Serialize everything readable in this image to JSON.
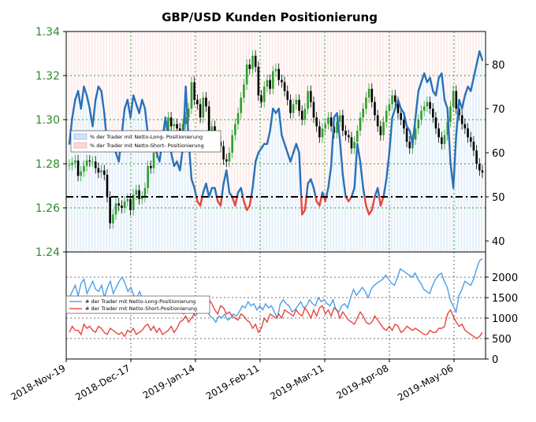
{
  "chart_data": {
    "type": "line",
    "title": "GBP/USD Kunden Positionierung",
    "x_ticks": [
      "2018-Nov-19",
      "2018-Dec-17",
      "2019-Jan-14",
      "2019-Feb-11",
      "2019-Mar-11",
      "2019-Apr-08",
      "2019-May-06"
    ],
    "top_panel": {
      "left_axis": {
        "ticks": [
          "1.24",
          "1.26",
          "1.28",
          "1.30",
          "1.32",
          "1.34"
        ],
        "ylim": [
          1.24,
          1.34
        ]
      },
      "right_axis": {
        "ticks": [
          "40",
          "50",
          "60",
          "70",
          "80"
        ],
        "ylim": [
          37.5,
          87.5
        ]
      },
      "threshold": 50,
      "legend": [
        "% der Trader mit Netto-Long- Positionierung",
        "% der Trader mit Netto-Short- Positionierung"
      ],
      "pct_net_long": [
        62,
        68,
        72,
        74,
        70,
        75,
        73,
        70,
        66,
        72,
        75,
        74,
        69,
        62,
        64,
        62,
        60,
        58,
        64,
        70,
        72,
        68,
        73,
        71,
        69,
        72,
        70,
        64,
        62,
        63,
        60,
        58,
        63,
        68,
        64,
        60,
        57,
        58,
        56,
        61,
        75,
        63,
        54,
        52,
        49,
        48,
        51,
        53,
        50,
        52,
        52,
        49,
        48,
        53,
        56,
        51,
        50,
        48,
        51,
        52,
        49,
        47,
        48,
        52,
        58,
        60,
        61,
        62,
        62,
        65,
        70,
        69,
        70,
        64,
        62,
        60,
        58,
        60,
        62,
        60,
        46,
        47,
        53,
        54,
        52,
        49,
        48,
        51,
        49,
        52,
        57,
        68,
        69,
        63,
        55,
        50,
        49,
        50,
        52,
        62,
        58,
        52,
        48,
        46,
        47,
        50,
        52,
        48,
        50,
        54,
        60,
        68,
        70,
        72,
        70,
        69,
        66,
        65,
        62,
        68,
        74,
        76,
        78,
        76,
        77,
        74,
        73,
        77,
        78,
        72,
        70,
        58,
        52,
        64,
        72,
        70,
        73,
        75,
        74,
        77,
        80,
        83,
        81
      ],
      "gbpusd": [
        1.2795,
        1.2805,
        1.2815,
        1.2745,
        1.2765,
        1.279,
        1.2815,
        1.281,
        1.281,
        1.278,
        1.276,
        1.277,
        1.275,
        1.265,
        1.253,
        1.257,
        1.262,
        1.261,
        1.26,
        1.263,
        1.264,
        1.259,
        1.266,
        1.268,
        1.264,
        1.265,
        1.269,
        1.279,
        1.278,
        1.285,
        1.29,
        1.289,
        1.292,
        1.295,
        1.301,
        1.297,
        1.298,
        1.296,
        1.294,
        1.298,
        1.301,
        1.305,
        1.317,
        1.309,
        1.307,
        1.301,
        1.31,
        1.306,
        1.295,
        1.297,
        1.292,
        1.29,
        1.288,
        1.282,
        1.281,
        1.285,
        1.293,
        1.298,
        1.303,
        1.31,
        1.316,
        1.325,
        1.323,
        1.329,
        1.324,
        1.311,
        1.308,
        1.315,
        1.318,
        1.314,
        1.322,
        1.323,
        1.318,
        1.317,
        1.313,
        1.309,
        1.303,
        1.307,
        1.309,
        1.304,
        1.3,
        1.305,
        1.313,
        1.308,
        1.301,
        1.297,
        1.292,
        1.296,
        1.298,
        1.301,
        1.297,
        1.294,
        1.299,
        1.302,
        1.295,
        1.293,
        1.292,
        1.287,
        1.29,
        1.295,
        1.301,
        1.305,
        1.31,
        1.314,
        1.308,
        1.302,
        1.297,
        1.293,
        1.299,
        1.304,
        1.307,
        1.311,
        1.308,
        1.303,
        1.3,
        1.296,
        1.29,
        1.287,
        1.291,
        1.296,
        1.3,
        1.304,
        1.306,
        1.308,
        1.305,
        1.301,
        1.296,
        1.292,
        1.289,
        1.293,
        1.299,
        1.306,
        1.313,
        1.305,
        1.302,
        1.298,
        1.296,
        1.292,
        1.29,
        1.286,
        1.28,
        1.277,
        1.276
      ]
    },
    "bottom_panel": {
      "right_axis": {
        "ticks": [
          "0",
          "500",
          "1000",
          "1500",
          "2000"
        ],
        "ylim": [
          0,
          2500
        ]
      },
      "legend": [
        "# der Trader mit Netto-Long-Positionierung",
        "# der Trader mit Netto-Short-Positionierung"
      ],
      "net_long_traders": [
        1500,
        1650,
        1800,
        1550,
        1850,
        1950,
        1600,
        1750,
        1900,
        1700,
        1650,
        1800,
        1500,
        1750,
        1900,
        1600,
        1750,
        1900,
        2000,
        1850,
        1650,
        1750,
        1550,
        1500,
        1650,
        1450,
        1300,
        1250,
        1350,
        1150,
        1300,
        1250,
        1200,
        1300,
        1150,
        1350,
        1250,
        1300,
        1200,
        1100,
        1150,
        1250,
        1150,
        1050,
        1150,
        1250,
        1350,
        1200,
        1050,
        1000,
        900,
        1050,
        1000,
        1100,
        950,
        1000,
        1100,
        1050,
        1150,
        1300,
        1250,
        1400,
        1300,
        1350,
        1200,
        1300,
        1200,
        1350,
        1250,
        1300,
        1150,
        1000,
        1350,
        1450,
        1350,
        1300,
        1150,
        1200,
        1300,
        1400,
        1250,
        1300,
        1450,
        1350,
        1300,
        1500,
        1400,
        1450,
        1350,
        1300,
        1450,
        1200,
        1150,
        1300,
        1350,
        1250,
        1500,
        1700,
        1550,
        1650,
        1750,
        1650,
        1500,
        1700,
        1800,
        1850,
        1900,
        1950,
        2050,
        1950,
        1850,
        1800,
        2000,
        2200,
        2150,
        2100,
        2050,
        2000,
        2100,
        1950,
        1850,
        1700,
        1650,
        1600,
        1800,
        1950,
        2050,
        2100,
        1900,
        1750,
        1450,
        1300,
        1150,
        1550,
        1700,
        1900,
        1850,
        1800,
        1950,
        2200,
        2400,
        2450
      ],
      "net_short_traders": [
        650,
        800,
        700,
        700,
        600,
        850,
        750,
        800,
        700,
        650,
        800,
        750,
        650,
        600,
        750,
        700,
        650,
        600,
        650,
        550,
        700,
        650,
        750,
        600,
        650,
        700,
        800,
        850,
        700,
        800,
        650,
        750,
        600,
        650,
        700,
        800,
        650,
        750,
        900,
        950,
        1050,
        900,
        1000,
        1100,
        1250,
        1300,
        1250,
        1300,
        1450,
        1350,
        1200,
        1100,
        1300,
        1250,
        1100,
        1150,
        1050,
        1000,
        950,
        1100,
        1050,
        950,
        900,
        750,
        850,
        650,
        750,
        1000,
        900,
        1100,
        1050,
        1000,
        1100,
        1000,
        1200,
        1150,
        1100,
        1050,
        1200,
        1100,
        1050,
        1250,
        1150,
        1000,
        1200,
        1050,
        1250,
        1300,
        1100,
        1200,
        1050,
        1250,
        1200,
        1000,
        1150,
        1050,
        950,
        900,
        850,
        1000,
        1150,
        1050,
        900,
        850,
        900,
        1050,
        950,
        850,
        750,
        700,
        800,
        700,
        850,
        800,
        650,
        700,
        800,
        750,
        700,
        750,
        700,
        650,
        600,
        600,
        700,
        650,
        650,
        750,
        750,
        800,
        1100,
        1200,
        1050,
        900,
        800,
        850,
        700,
        650,
        600,
        550,
        500,
        550,
        650
      ]
    },
    "colors": {
      "long_line": "#2a70b8",
      "short_line": "#e8463e",
      "long_fill": "#cfe3f5",
      "short_fill": "#fbd9d7",
      "candle_up": "#2ca02c",
      "candle_down": "#000000",
      "grid": "#2ca02c",
      "left_tick": "#2e8b2e"
    }
  }
}
